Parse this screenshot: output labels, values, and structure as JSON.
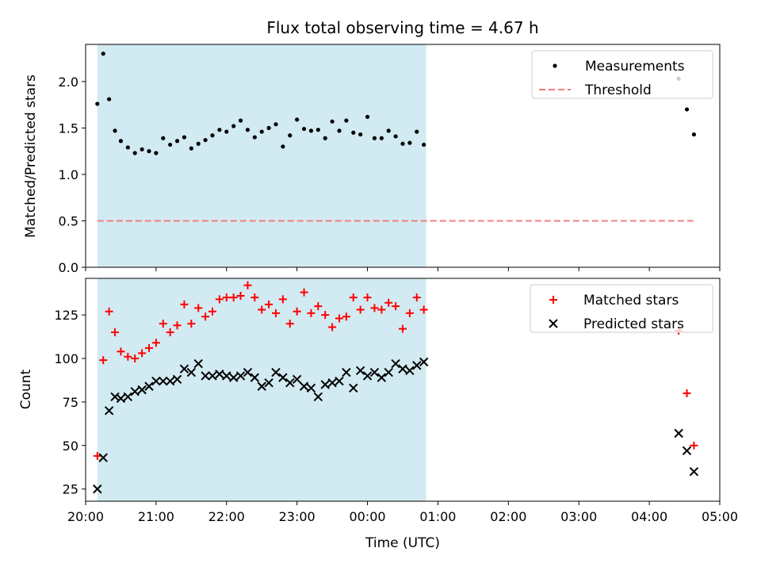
{
  "chart_data": [
    {
      "type": "scatter",
      "title": "Flux total observing time = 4.67 h",
      "xlabel": "",
      "ylabel": "Matched/Predicted stars",
      "xlim": [
        "20:00",
        "05:00"
      ],
      "ylim": [
        0,
        2.4
      ],
      "yticks": [
        0.0,
        0.5,
        1.0,
        1.5,
        2.0
      ],
      "ytick_labels": [
        "0.0",
        "0.5",
        "1.0",
        "1.5",
        "2.0"
      ],
      "grid": false,
      "legend_position": "top-right",
      "shaded_interval": {
        "start": "20:10",
        "end": "00:50",
        "color": "#add8e6"
      },
      "series": [
        {
          "name": "Measurements",
          "marker": "dot",
          "color": "#000000",
          "x": [
            "20:10",
            "20:15",
            "20:20",
            "20:25",
            "20:30",
            "20:36",
            "20:42",
            "20:48",
            "20:54",
            "21:00",
            "21:06",
            "21:12",
            "21:18",
            "21:24",
            "21:30",
            "21:36",
            "21:42",
            "21:48",
            "21:54",
            "22:00",
            "22:06",
            "22:12",
            "22:18",
            "22:24",
            "22:30",
            "22:36",
            "22:42",
            "22:48",
            "22:54",
            "23:00",
            "23:06",
            "23:12",
            "23:18",
            "23:24",
            "23:30",
            "23:36",
            "23:42",
            "23:48",
            "23:54",
            "00:00",
            "00:06",
            "00:12",
            "00:18",
            "00:24",
            "00:30",
            "00:36",
            "00:42",
            "00:48",
            "04:25",
            "04:32",
            "04:38"
          ],
          "y": [
            1.76,
            2.3,
            1.81,
            1.47,
            1.36,
            1.29,
            1.23,
            1.27,
            1.25,
            1.23,
            1.39,
            1.32,
            1.36,
            1.4,
            1.28,
            1.33,
            1.37,
            1.42,
            1.48,
            1.46,
            1.52,
            1.58,
            1.48,
            1.4,
            1.46,
            1.5,
            1.54,
            1.3,
            1.42,
            1.59,
            1.49,
            1.47,
            1.48,
            1.39,
            1.57,
            1.47,
            1.58,
            1.45,
            1.43,
            1.62,
            1.39,
            1.39,
            1.47,
            1.41,
            1.33,
            1.34,
            1.46,
            1.32,
            2.03,
            1.7,
            1.43
          ],
          "x_extra": [],
          "y_extra": []
        },
        {
          "name": "Threshold",
          "line_style": "dashed",
          "color": "#f08080",
          "x": [
            "20:10",
            "04:40"
          ],
          "y": [
            0.5,
            0.5
          ]
        }
      ]
    },
    {
      "type": "scatter",
      "title": "",
      "xlabel": "Time (UTC)",
      "ylabel": "Count",
      "xlim": [
        "20:00",
        "05:00"
      ],
      "xticks": [
        "20:00",
        "21:00",
        "22:00",
        "23:00",
        "00:00",
        "01:00",
        "02:00",
        "03:00",
        "04:00",
        "05:00"
      ],
      "ylim": [
        18,
        146
      ],
      "yticks": [
        25,
        50,
        75,
        100,
        125
      ],
      "ytick_labels": [
        "25",
        "50",
        "75",
        "100",
        "125"
      ],
      "grid": false,
      "legend_position": "top-right",
      "shaded_interval": {
        "start": "20:10",
        "end": "00:50",
        "color": "#add8e6"
      },
      "series": [
        {
          "name": "Matched stars",
          "marker": "plus",
          "color": "#ff0000",
          "x": [
            "20:10",
            "20:15",
            "20:20",
            "20:25",
            "20:30",
            "20:36",
            "20:42",
            "20:48",
            "20:54",
            "21:00",
            "21:06",
            "21:12",
            "21:18",
            "21:24",
            "21:30",
            "21:36",
            "21:42",
            "21:48",
            "21:54",
            "22:00",
            "22:06",
            "22:12",
            "22:18",
            "22:24",
            "22:30",
            "22:36",
            "22:42",
            "22:48",
            "22:54",
            "23:00",
            "23:06",
            "23:12",
            "23:18",
            "23:24",
            "23:30",
            "23:36",
            "23:42",
            "23:48",
            "23:54",
            "00:00",
            "00:06",
            "00:12",
            "00:18",
            "00:24",
            "00:30",
            "00:36",
            "00:42",
            "00:48",
            "04:25",
            "04:32",
            "04:38"
          ],
          "y": [
            44,
            99,
            127,
            115,
            104,
            101,
            100,
            103,
            106,
            109,
            120,
            115,
            119,
            131,
            120,
            129,
            124,
            127,
            134,
            135,
            135,
            136,
            142,
            135,
            128,
            131,
            126,
            134,
            120,
            127,
            138,
            126,
            130,
            125,
            118,
            123,
            124,
            135,
            128,
            135,
            129,
            128,
            132,
            130,
            117,
            126,
            135,
            128,
            116,
            80,
            50
          ]
        },
        {
          "name": "Predicted stars",
          "marker": "x",
          "color": "#000000",
          "x": [
            "20:10",
            "20:15",
            "20:20",
            "20:25",
            "20:30",
            "20:36",
            "20:42",
            "20:48",
            "20:54",
            "21:00",
            "21:06",
            "21:12",
            "21:18",
            "21:24",
            "21:30",
            "21:36",
            "21:42",
            "21:48",
            "21:54",
            "22:00",
            "22:06",
            "22:12",
            "22:18",
            "22:24",
            "22:30",
            "22:36",
            "22:42",
            "22:48",
            "22:54",
            "23:00",
            "23:06",
            "23:12",
            "23:18",
            "23:24",
            "23:30",
            "23:36",
            "23:42",
            "23:48",
            "23:54",
            "00:00",
            "00:06",
            "00:12",
            "00:18",
            "00:24",
            "00:30",
            "00:36",
            "00:42",
            "00:48",
            "04:25",
            "04:32",
            "04:38"
          ],
          "y": [
            25,
            43,
            70,
            78,
            77,
            78,
            81,
            82,
            84,
            87,
            87,
            87,
            88,
            94,
            92,
            97,
            90,
            90,
            91,
            90,
            89,
            90,
            92,
            89,
            84,
            86,
            92,
            89,
            86,
            88,
            84,
            83,
            78,
            85,
            86,
            87,
            92,
            83,
            93,
            90,
            92,
            89,
            92,
            97,
            94,
            93,
            96,
            98,
            57,
            47,
            35
          ]
        }
      ]
    }
  ]
}
